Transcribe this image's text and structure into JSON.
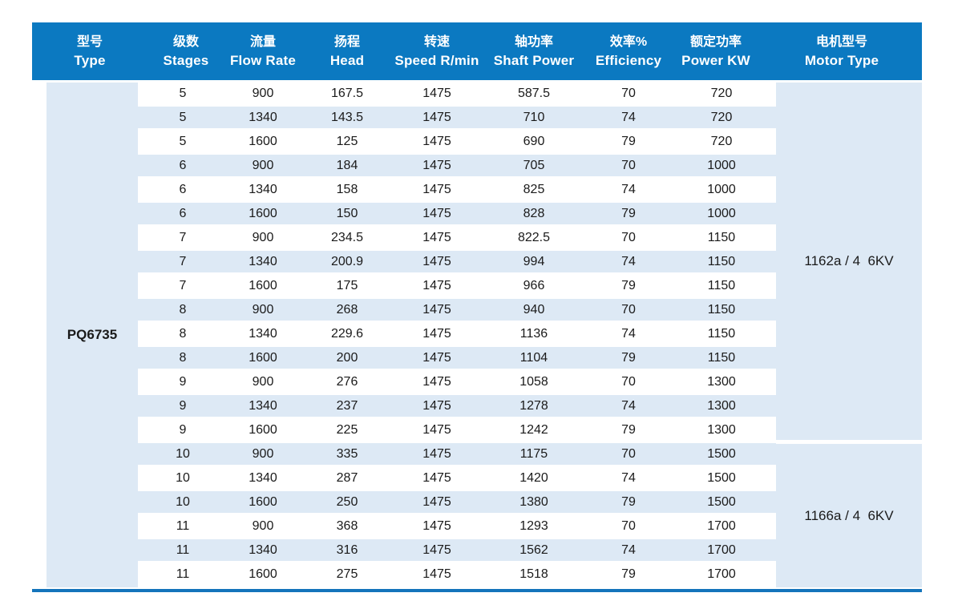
{
  "table": {
    "columns": [
      {
        "zh": "型号",
        "en": "Type"
      },
      {
        "zh": "级数",
        "en": "Stages"
      },
      {
        "zh": "流量",
        "en": "Flow Rate"
      },
      {
        "zh": "扬程",
        "en": "Head"
      },
      {
        "zh": "转速",
        "en": "Speed R/min"
      },
      {
        "zh": "轴功率",
        "en": "Shaft Power"
      },
      {
        "zh": "效率%",
        "en": "Efficiency"
      },
      {
        "zh": "额定功率",
        "en": "Power KW"
      },
      {
        "zh": "电机型号",
        "en": "Motor Type"
      }
    ],
    "type_label": "PQ6735",
    "rows": [
      [
        "5",
        "900",
        "167.5",
        "1475",
        "587.5",
        "70",
        "720"
      ],
      [
        "5",
        "1340",
        "143.5",
        "1475",
        "710",
        "74",
        "720"
      ],
      [
        "5",
        "1600",
        "125",
        "1475",
        "690",
        "79",
        "720"
      ],
      [
        "6",
        "900",
        "184",
        "1475",
        "705",
        "70",
        "1000"
      ],
      [
        "6",
        "1340",
        "158",
        "1475",
        "825",
        "74",
        "1000"
      ],
      [
        "6",
        "1600",
        "150",
        "1475",
        "828",
        "79",
        "1000"
      ],
      [
        "7",
        "900",
        "234.5",
        "1475",
        "822.5",
        "70",
        "1150"
      ],
      [
        "7",
        "1340",
        "200.9",
        "1475",
        "994",
        "74",
        "1150"
      ],
      [
        "7",
        "1600",
        "175",
        "1475",
        "966",
        "79",
        "1150"
      ],
      [
        "8",
        "900",
        "268",
        "1475",
        "940",
        "70",
        "1150"
      ],
      [
        "8",
        "1340",
        "229.6",
        "1475",
        "1136",
        "74",
        "1150"
      ],
      [
        "8",
        "1600",
        "200",
        "1475",
        "1104",
        "79",
        "1150"
      ],
      [
        "9",
        "900",
        "276",
        "1475",
        "1058",
        "70",
        "1300"
      ],
      [
        "9",
        "1340",
        "237",
        "1475",
        "1278",
        "74",
        "1300"
      ],
      [
        "9",
        "1600",
        "225",
        "1475",
        "1242",
        "79",
        "1300"
      ],
      [
        "10",
        "900",
        "335",
        "1475",
        "1175",
        "70",
        "1500"
      ],
      [
        "10",
        "1340",
        "287",
        "1475",
        "1420",
        "74",
        "1500"
      ],
      [
        "10",
        "1600",
        "250",
        "1475",
        "1380",
        "79",
        "1500"
      ],
      [
        "11",
        "900",
        "368",
        "1475",
        "1293",
        "70",
        "1700"
      ],
      [
        "11",
        "1340",
        "316",
        "1475",
        "1562",
        "74",
        "1700"
      ],
      [
        "11",
        "1600",
        "275",
        "1475",
        "1518",
        "79",
        "1700"
      ]
    ],
    "motor_groups": [
      {
        "label": "1162a / 4  6KV"
      },
      {
        "label": "1166a / 4  6KV"
      }
    ]
  },
  "colors": {
    "header_bg": "#0b79c1",
    "stripe_bg": "#dde9f5",
    "bottom_line": "#1474bb",
    "header_text": "#ffffff",
    "body_text": "#1a1a1a"
  }
}
